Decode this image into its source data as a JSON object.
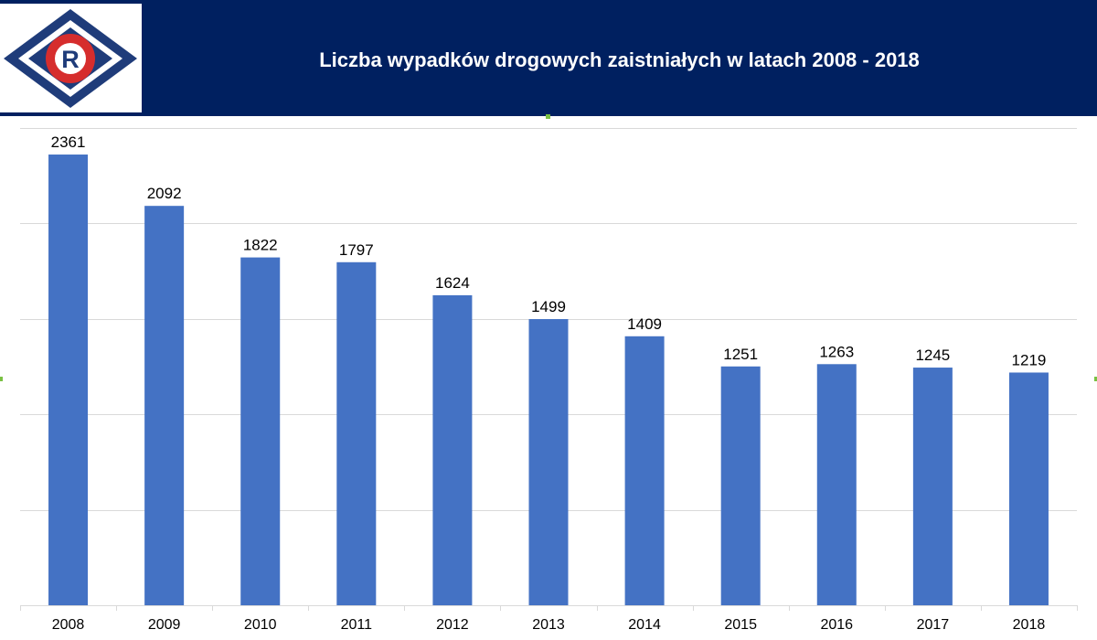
{
  "colors": {
    "header_bg": "#002060",
    "bar": "#4472c4",
    "grid": "#d9d9d9",
    "axis_text": "#000000",
    "logo_diamond": "#1f3c7a",
    "logo_ring": "#d62d2d"
  },
  "header": {
    "logo_icon": "road-police-R-emblem",
    "logo_letter": "R"
  },
  "chart_data": {
    "type": "bar",
    "title": "Liczba wypadków drogowych zaistniałych w latach 2008 - 2018",
    "xlabel": "",
    "ylabel": "",
    "categories": [
      "2008",
      "2009",
      "2010",
      "2011",
      "2012",
      "2013",
      "2014",
      "2015",
      "2016",
      "2017",
      "2018"
    ],
    "values": [
      2361,
      2092,
      1822,
      1797,
      1624,
      1499,
      1409,
      1251,
      1263,
      1245,
      1219
    ],
    "ylim": [
      0,
      2500
    ],
    "y_gridline_step": 500,
    "grid": true,
    "data_labels": true,
    "legend": "none"
  }
}
